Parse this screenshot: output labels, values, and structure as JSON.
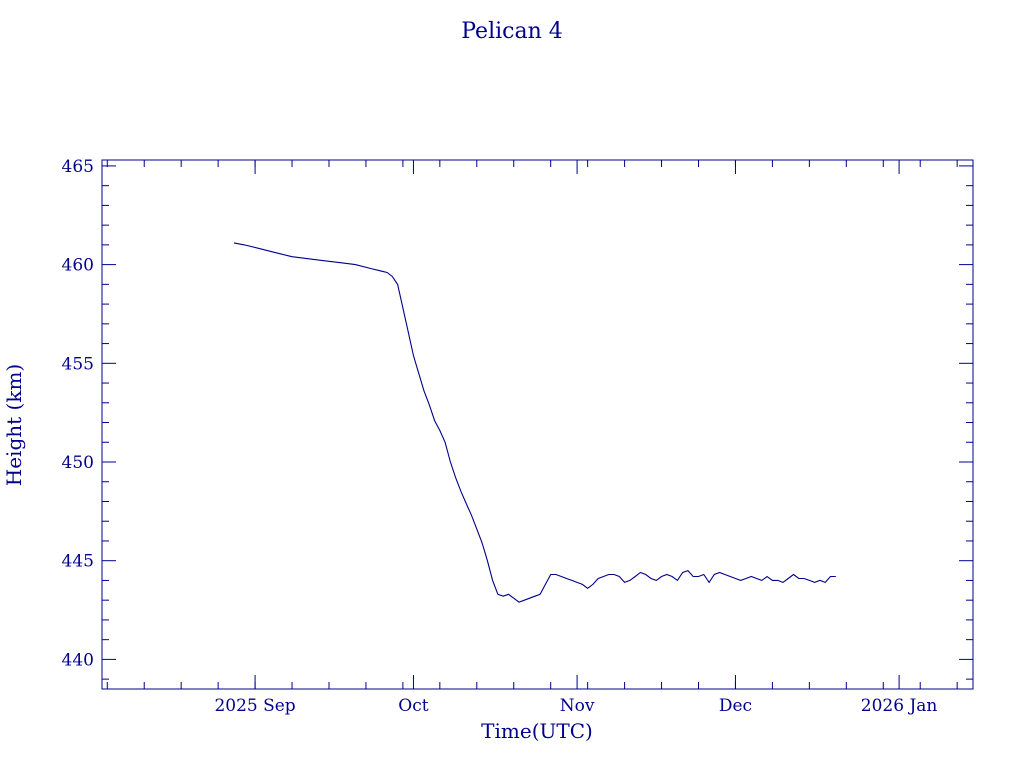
{
  "chart_data": {
    "type": "line",
    "title": "Pelican 4",
    "xlabel": "Time(UTC)",
    "ylabel": "Height (km)",
    "color": "#00008b",
    "xlim": [
      "2025-08-03",
      "2026-01-15"
    ],
    "ylim": [
      438.5,
      465.3
    ],
    "x_ticks": [
      {
        "date": "2025-09-01",
        "label": "2025 Sep"
      },
      {
        "date": "2025-10-01",
        "label": "Oct"
      },
      {
        "date": "2025-11-01",
        "label": "Nov"
      },
      {
        "date": "2025-12-01",
        "label": "Dec"
      },
      {
        "date": "2026-01-01",
        "label": "2026 Jan"
      }
    ],
    "y_ticks": [
      440,
      445,
      450,
      455,
      460,
      465
    ],
    "grid": false,
    "series": [
      {
        "x": [
          "2025-08-28",
          "2025-08-30",
          "2025-09-02",
          "2025-09-05",
          "2025-09-08",
          "2025-09-11",
          "2025-09-14",
          "2025-09-17",
          "2025-09-20",
          "2025-09-23",
          "2025-09-26",
          "2025-09-27",
          "2025-09-28",
          "2025-09-29",
          "2025-09-30",
          "2025-10-01",
          "2025-10-02",
          "2025-10-03",
          "2025-10-04",
          "2025-10-05",
          "2025-10-06",
          "2025-10-07",
          "2025-10-08",
          "2025-10-09",
          "2025-10-10",
          "2025-10-11",
          "2025-10-12",
          "2025-10-13",
          "2025-10-14",
          "2025-10-15",
          "2025-10-16",
          "2025-10-17",
          "2025-10-18",
          "2025-10-19",
          "2025-10-20",
          "2025-10-21",
          "2025-10-22",
          "2025-10-23",
          "2025-10-24",
          "2025-10-25",
          "2025-10-26",
          "2025-10-27",
          "2025-10-28",
          "2025-10-29",
          "2025-10-30",
          "2025-10-31",
          "2025-11-01",
          "2025-11-02",
          "2025-11-03",
          "2025-11-04",
          "2025-11-05",
          "2025-11-06",
          "2025-11-07",
          "2025-11-08",
          "2025-11-09",
          "2025-11-10",
          "2025-11-11",
          "2025-11-12",
          "2025-11-13",
          "2025-11-14",
          "2025-11-15",
          "2025-11-16",
          "2025-11-17",
          "2025-11-18",
          "2025-11-19",
          "2025-11-20",
          "2025-11-21",
          "2025-11-22",
          "2025-11-23",
          "2025-11-24",
          "2025-11-25",
          "2025-11-26",
          "2025-11-27",
          "2025-11-28",
          "2025-11-29",
          "2025-11-30",
          "2025-12-01",
          "2025-12-02",
          "2025-12-03",
          "2025-12-04",
          "2025-12-05",
          "2025-12-06",
          "2025-12-07",
          "2025-12-08",
          "2025-12-09",
          "2025-12-10",
          "2025-12-11",
          "2025-12-12",
          "2025-12-13",
          "2025-12-14",
          "2025-12-15",
          "2025-12-16",
          "2025-12-17",
          "2025-12-18",
          "2025-12-19",
          "2025-12-20"
        ],
        "y": [
          461.1,
          461.0,
          460.8,
          460.6,
          460.4,
          460.3,
          460.2,
          460.1,
          460.0,
          459.8,
          459.6,
          459.4,
          459.0,
          457.8,
          456.6,
          455.4,
          454.5,
          453.6,
          452.9,
          452.1,
          451.6,
          451.0,
          450.0,
          449.2,
          448.5,
          447.9,
          447.3,
          446.6,
          445.9,
          445.0,
          444.0,
          443.3,
          443.2,
          443.3,
          443.1,
          442.9,
          443.0,
          443.1,
          443.2,
          443.3,
          443.8,
          444.3,
          444.3,
          444.2,
          444.1,
          444.0,
          443.9,
          443.8,
          443.6,
          443.8,
          444.1,
          444.2,
          444.3,
          444.3,
          444.2,
          443.9,
          444.0,
          444.2,
          444.4,
          444.3,
          444.1,
          444.0,
          444.2,
          444.3,
          444.2,
          444.0,
          444.4,
          444.5,
          444.2,
          444.2,
          444.3,
          443.9,
          444.3,
          444.4,
          444.3,
          444.2,
          444.1,
          444.0,
          444.1,
          444.2,
          444.1,
          444.0,
          444.2,
          444.0,
          444.0,
          443.9,
          444.1,
          444.3,
          444.1,
          444.1,
          444.0,
          443.9,
          444.0,
          443.9,
          444.2,
          444.2
        ]
      }
    ]
  }
}
